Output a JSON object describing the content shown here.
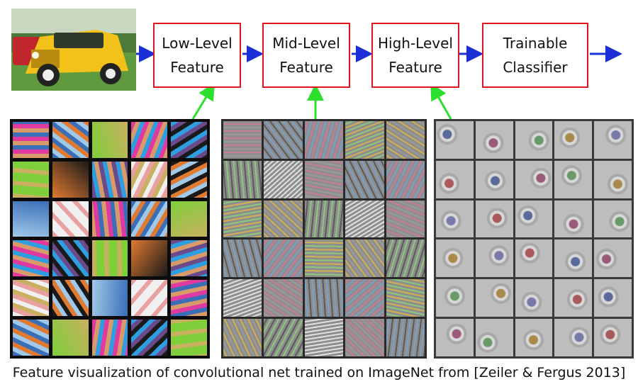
{
  "pipeline": {
    "stages": [
      {
        "label": "Low-Level\nFeature"
      },
      {
        "label": "Mid-Level\nFeature"
      },
      {
        "label": "High-Level\nFeature"
      },
      {
        "label": "Trainable\nClassifier"
      }
    ],
    "colors": {
      "box_border": "#e0141e",
      "flow_arrow": "#1a2fd6",
      "link_arrow": "#2ee02e"
    }
  },
  "input_image": {
    "icon": "yellow-car-photo"
  },
  "panels": [
    {
      "name": "low-level-filters",
      "rows": 6,
      "cols": 5,
      "style": "dark-grid"
    },
    {
      "name": "mid-level-filters",
      "rows": 6,
      "cols": 5,
      "style": "gray-grid"
    },
    {
      "name": "high-level-filters",
      "rows": 6,
      "cols": 5,
      "style": "light-gray-grid"
    }
  ],
  "caption": "Feature visualization of convolutional net trained on ImageNet from [Zeiler & Fergus 2013]"
}
